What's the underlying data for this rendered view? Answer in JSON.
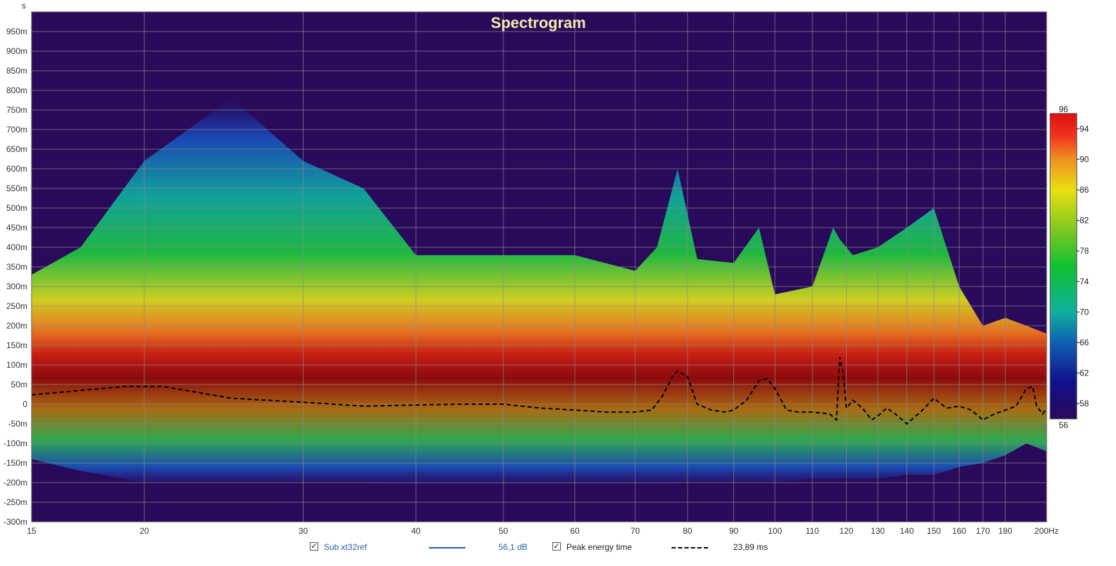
{
  "chart_data": {
    "type": "heatmap",
    "title": "Spectrogram",
    "ylabel": "s",
    "xunit": "Hz",
    "xscale": "log",
    "xlim": [
      15,
      200
    ],
    "ylim": [
      -0.3,
      1.0
    ],
    "x_ticks": [
      15,
      20,
      30,
      40,
      50,
      60,
      70,
      80,
      90,
      100,
      110,
      120,
      130,
      140,
      150,
      160,
      170,
      180,
      200
    ],
    "x_tick_labels": [
      "15",
      "20",
      "30",
      "40",
      "50",
      "60",
      "70",
      "80",
      "90",
      "100",
      "110",
      "120",
      "130",
      "140",
      "150",
      "160",
      "170",
      "180",
      "200Hz"
    ],
    "y_ticks": [
      -0.3,
      -0.25,
      -0.2,
      -0.15,
      -0.1,
      -0.05,
      0,
      0.05,
      0.1,
      0.15,
      0.2,
      0.25,
      0.3,
      0.35,
      0.4,
      0.45,
      0.5,
      0.55,
      0.6,
      0.65,
      0.7,
      0.75,
      0.8,
      0.85,
      0.9,
      0.95
    ],
    "y_tick_labels": [
      "-300m",
      "-250m",
      "-200m",
      "-150m",
      "-100m",
      "-50m",
      "0",
      "50m",
      "100m",
      "150m",
      "200m",
      "250m",
      "300m",
      "350m",
      "400m",
      "450m",
      "500m",
      "550m",
      "600m",
      "650m",
      "700m",
      "750m",
      "800m",
      "850m",
      "900m",
      "950m"
    ],
    "grid": true,
    "colorbar": {
      "min": 56,
      "max": 96,
      "ticks": [
        58,
        62,
        66,
        70,
        74,
        78,
        82,
        86,
        90,
        94
      ],
      "min_label": "56",
      "max_label": "96"
    },
    "energy_envelope": {
      "x": [
        15,
        17,
        20,
        25,
        30,
        35,
        40,
        50,
        60,
        70,
        74,
        78,
        82,
        90,
        96,
        100,
        110,
        116,
        118,
        122,
        130,
        140,
        150,
        160,
        170,
        180,
        190,
        200
      ],
      "top": [
        0.33,
        0.4,
        0.62,
        0.78,
        0.62,
        0.55,
        0.38,
        0.38,
        0.38,
        0.34,
        0.4,
        0.6,
        0.37,
        0.36,
        0.45,
        0.28,
        0.3,
        0.45,
        0.42,
        0.38,
        0.4,
        0.45,
        0.5,
        0.3,
        0.2,
        0.22,
        0.2,
        0.18
      ],
      "bottom": [
        -0.14,
        -0.17,
        -0.2,
        -0.2,
        -0.2,
        -0.2,
        -0.21,
        -0.21,
        -0.21,
        -0.21,
        -0.21,
        -0.2,
        -0.2,
        -0.2,
        -0.2,
        -0.2,
        -0.19,
        -0.19,
        -0.19,
        -0.19,
        -0.19,
        -0.18,
        -0.18,
        -0.16,
        -0.15,
        -0.13,
        -0.1,
        -0.12
      ]
    },
    "series": [
      {
        "name": "Peak energy time",
        "style": "dashed",
        "color": "#000000",
        "x": [
          15,
          17,
          19,
          21,
          25,
          30,
          35,
          40,
          45,
          50,
          55,
          60,
          65,
          70,
          73,
          75,
          77,
          78,
          80,
          82,
          85,
          88,
          90,
          93,
          96,
          98,
          100,
          103,
          106,
          110,
          115,
          117,
          118,
          119,
          120,
          122,
          125,
          128,
          130,
          133,
          136,
          140,
          145,
          150,
          155,
          160,
          165,
          170,
          175,
          180,
          185,
          190,
          193,
          195,
          198,
          200
        ],
        "y": [
          0.024,
          0.035,
          0.045,
          0.045,
          0.015,
          0.005,
          -0.005,
          -0.002,
          0.0,
          0.0,
          -0.01,
          -0.015,
          -0.02,
          -0.02,
          -0.015,
          0.02,
          0.07,
          0.085,
          0.07,
          0.0,
          -0.015,
          -0.02,
          -0.015,
          0.01,
          0.06,
          0.065,
          0.04,
          -0.015,
          -0.02,
          -0.02,
          -0.025,
          -0.04,
          0.12,
          0.08,
          -0.01,
          0.01,
          -0.01,
          -0.04,
          -0.03,
          -0.01,
          -0.025,
          -0.05,
          -0.02,
          0.015,
          -0.01,
          -0.005,
          -0.015,
          -0.04,
          -0.025,
          -0.015,
          -0.005,
          0.04,
          0.045,
          -0.005,
          -0.025,
          -0.01
        ]
      }
    ]
  },
  "legend": {
    "measurement_label": "Sub xt32ref",
    "measurement_color": "#1f5f9e",
    "measurement_value": "56,1 dB",
    "peak_label": "Peak energy time",
    "peak_value": "23,89 ms",
    "checkmark": "✓"
  },
  "colors": {
    "plot_background": "#2a0a5a",
    "grid": "#8a8a8a",
    "title": "#eeeeaa",
    "axis_text": "#333333"
  }
}
